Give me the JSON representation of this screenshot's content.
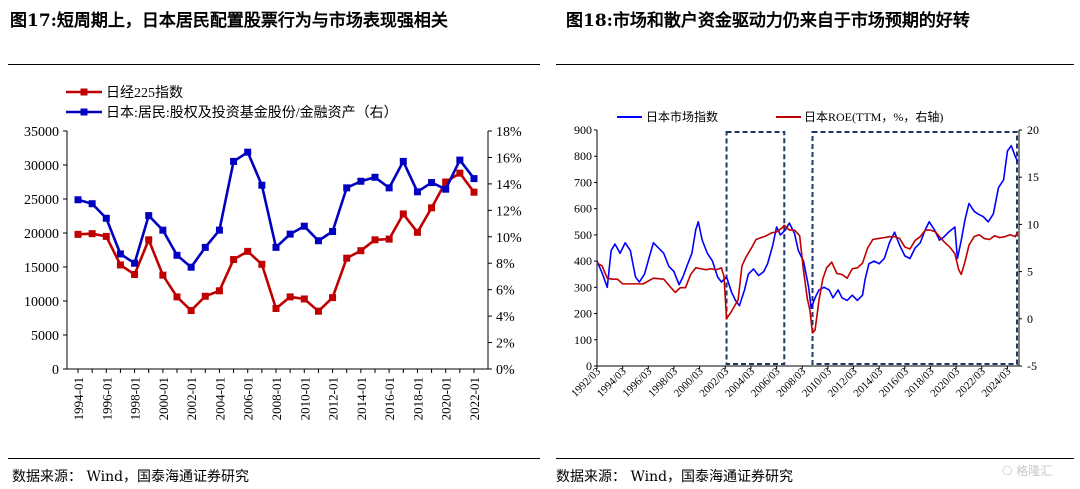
{
  "fig17": {
    "title": "图17:短周期上，日本居民配置股票行为与市场表现强相关",
    "source": "数据来源：  Wind，国泰海通证券研究"
  },
  "fig18": {
    "title": "图18:市场和散户资金驱动力仍来自于市场预期的好转",
    "source": "数据来源：  Wind，国泰海通证券研究"
  },
  "watermark": "格隆汇",
  "chart_data": [
    {
      "type": "line",
      "x": [
        "1994-01",
        "1995-01",
        "1996-01",
        "1997-01",
        "1998-01",
        "1999-01",
        "2000-01",
        "2001-01",
        "2002-01",
        "2003-01",
        "2004-01",
        "2005-01",
        "2006-01",
        "2007-01",
        "2008-01",
        "2009-01",
        "2010-01",
        "2011-01",
        "2012-01",
        "2013-01",
        "2014-01",
        "2015-01",
        "2016-01",
        "2017-01",
        "2018-01",
        "2019-01",
        "2020-01",
        "2021-01",
        "2022-01"
      ],
      "xticks": [
        "1994-01",
        "1996-01",
        "1998-01",
        "2000-01",
        "2002-01",
        "2004-01",
        "2006-01",
        "2008-01",
        "2010-01",
        "2012-01",
        "2014-01",
        "2016-01",
        "2018-01",
        "2020-01",
        "2022-01"
      ],
      "series": [
        {
          "name": "日经225指数",
          "axis": "left",
          "color": "#c00000",
          "values": [
            19800,
            19900,
            19500,
            15300,
            13900,
            19000,
            13800,
            10600,
            8600,
            10700,
            11500,
            16100,
            17300,
            15400,
            8900,
            10600,
            10300,
            8500,
            10500,
            16300,
            17400,
            19000,
            19100,
            22800,
            20100,
            23700,
            27500,
            28800,
            26000
          ]
        },
        {
          "name": "日本:居民:股权及投资基金股份/金融资产（右）",
          "axis": "right",
          "color": "#0000c0",
          "values": [
            12.8,
            12.5,
            11.4,
            8.7,
            8.0,
            11.6,
            10.5,
            8.6,
            7.7,
            9.2,
            10.5,
            15.7,
            16.4,
            13.9,
            9.2,
            10.2,
            10.8,
            9.7,
            10.4,
            13.7,
            14.2,
            14.5,
            13.7,
            15.7,
            13.4,
            14.1,
            13.6,
            15.8,
            14.4
          ]
        }
      ],
      "ylim_left": [
        0,
        35000
      ],
      "yticks_left": [
        0,
        5000,
        10000,
        15000,
        20000,
        25000,
        30000,
        35000
      ],
      "ylim_right": [
        0,
        18
      ],
      "yticks_right": [
        "0%",
        "2%",
        "4%",
        "6%",
        "8%",
        "10%",
        "12%",
        "14%",
        "16%",
        "18%"
      ],
      "legend": "top-left",
      "grid": false
    },
    {
      "type": "line",
      "xticks": [
        "1992/03",
        "1994/03",
        "1996/03",
        "1998/03",
        "2000/03",
        "2002/03",
        "2004/03",
        "2006/03",
        "2008/03",
        "2010/03",
        "2012/03",
        "2014/03",
        "2016/03",
        "2018/03",
        "2020/03",
        "2022/03",
        "2024/03"
      ],
      "series": [
        {
          "name": "日本市场指数",
          "axis": "left",
          "color": "#0000ff",
          "points": [
            [
              1992.2,
              400
            ],
            [
              1992.6,
              355
            ],
            [
              1993.0,
              300
            ],
            [
              1993.3,
              440
            ],
            [
              1993.6,
              465
            ],
            [
              1994.0,
              430
            ],
            [
              1994.4,
              470
            ],
            [
              1994.8,
              440
            ],
            [
              1995.2,
              340
            ],
            [
              1995.5,
              320
            ],
            [
              1995.9,
              350
            ],
            [
              1996.3,
              420
            ],
            [
              1996.6,
              470
            ],
            [
              1997.0,
              450
            ],
            [
              1997.4,
              430
            ],
            [
              1997.8,
              380
            ],
            [
              1998.2,
              360
            ],
            [
              1998.6,
              310
            ],
            [
              1998.9,
              340
            ],
            [
              1999.2,
              380
            ],
            [
              1999.6,
              430
            ],
            [
              1999.9,
              520
            ],
            [
              2000.1,
              550
            ],
            [
              2000.4,
              480
            ],
            [
              2000.8,
              430
            ],
            [
              2001.2,
              400
            ],
            [
              2001.6,
              340
            ],
            [
              2001.9,
              320
            ],
            [
              2002.3,
              340
            ],
            [
              2002.7,
              280
            ],
            [
              2003.0,
              250
            ],
            [
              2003.3,
              230
            ],
            [
              2003.7,
              290
            ],
            [
              2004.0,
              350
            ],
            [
              2004.4,
              370
            ],
            [
              2004.8,
              345
            ],
            [
              2005.2,
              360
            ],
            [
              2005.5,
              390
            ],
            [
              2005.9,
              460
            ],
            [
              2006.2,
              530
            ],
            [
              2006.5,
              500
            ],
            [
              2006.9,
              520
            ],
            [
              2007.2,
              545
            ],
            [
              2007.6,
              505
            ],
            [
              2007.9,
              440
            ],
            [
              2008.3,
              400
            ],
            [
              2008.7,
              300
            ],
            [
              2008.9,
              220
            ],
            [
              2009.2,
              260
            ],
            [
              2009.5,
              290
            ],
            [
              2009.9,
              300
            ],
            [
              2010.3,
              290
            ],
            [
              2010.6,
              260
            ],
            [
              2011.0,
              290
            ],
            [
              2011.3,
              260
            ],
            [
              2011.7,
              250
            ],
            [
              2012.1,
              270
            ],
            [
              2012.5,
              250
            ],
            [
              2012.9,
              270
            ],
            [
              2013.1,
              330
            ],
            [
              2013.4,
              390
            ],
            [
              2013.8,
              400
            ],
            [
              2014.2,
              390
            ],
            [
              2014.6,
              410
            ],
            [
              2015.0,
              470
            ],
            [
              2015.4,
              510
            ],
            [
              2015.8,
              460
            ],
            [
              2016.2,
              420
            ],
            [
              2016.6,
              410
            ],
            [
              2017.0,
              450
            ],
            [
              2017.4,
              470
            ],
            [
              2017.8,
              520
            ],
            [
              2018.1,
              550
            ],
            [
              2018.5,
              520
            ],
            [
              2018.9,
              480
            ],
            [
              2019.2,
              490
            ],
            [
              2019.6,
              510
            ],
            [
              2020.1,
              530
            ],
            [
              2020.3,
              410
            ],
            [
              2020.6,
              480
            ],
            [
              2020.9,
              560
            ],
            [
              2021.2,
              620
            ],
            [
              2021.6,
              590
            ],
            [
              2021.9,
              580
            ],
            [
              2022.3,
              570
            ],
            [
              2022.7,
              550
            ],
            [
              2023.1,
              580
            ],
            [
              2023.5,
              680
            ],
            [
              2023.9,
              710
            ],
            [
              2024.2,
              820
            ],
            [
              2024.5,
              840
            ],
            [
              2024.8,
              800
            ],
            [
              2025.0,
              780
            ]
          ]
        },
        {
          "name": "日本ROE(TTM，%，右轴)",
          "axis": "right",
          "color": "#c00000",
          "points": [
            [
              1992.2,
              5.9
            ],
            [
              1992.6,
              5.6
            ],
            [
              1993.0,
              4.3
            ],
            [
              1993.4,
              4.2
            ],
            [
              1993.8,
              4.2
            ],
            [
              1994.2,
              3.7
            ],
            [
              1995.0,
              3.7
            ],
            [
              1995.8,
              3.7
            ],
            [
              1996.6,
              4.3
            ],
            [
              1997.4,
              4.2
            ],
            [
              1997.9,
              3.4
            ],
            [
              1998.3,
              2.8
            ],
            [
              1998.7,
              3.3
            ],
            [
              1999.1,
              3.3
            ],
            [
              1999.5,
              4.7
            ],
            [
              1999.9,
              5.4
            ],
            [
              2000.3,
              5.3
            ],
            [
              2000.7,
              5.2
            ],
            [
              2001.1,
              5.3
            ],
            [
              2001.5,
              5.2
            ],
            [
              2001.9,
              5.4
            ],
            [
              2002.1,
              4.5
            ],
            [
              2002.3,
              0.0
            ],
            [
              2002.6,
              0.6
            ],
            [
              2002.9,
              1.3
            ],
            [
              2003.2,
              2.0
            ],
            [
              2003.5,
              5.6
            ],
            [
              2003.8,
              6.5
            ],
            [
              2004.2,
              7.4
            ],
            [
              2004.6,
              8.4
            ],
            [
              2005.0,
              8.6
            ],
            [
              2005.4,
              8.8
            ],
            [
              2005.8,
              9.1
            ],
            [
              2006.2,
              9.2
            ],
            [
              2006.6,
              9.6
            ],
            [
              2006.8,
              9.9
            ],
            [
              2007.2,
              9.4
            ],
            [
              2007.6,
              9.4
            ],
            [
              2008.0,
              8.8
            ],
            [
              2008.3,
              5.1
            ],
            [
              2008.6,
              2.1
            ],
            [
              2008.8,
              0.9
            ],
            [
              2009.0,
              -1.5
            ],
            [
              2009.2,
              -1.2
            ],
            [
              2009.5,
              1.9
            ],
            [
              2009.8,
              4.2
            ],
            [
              2010.1,
              5.4
            ],
            [
              2010.5,
              6.0
            ],
            [
              2010.9,
              4.8
            ],
            [
              2011.3,
              4.7
            ],
            [
              2011.7,
              4.3
            ],
            [
              2012.1,
              5.3
            ],
            [
              2012.5,
              5.4
            ],
            [
              2012.9,
              5.9
            ],
            [
              2013.3,
              7.5
            ],
            [
              2013.7,
              8.4
            ],
            [
              2014.1,
              8.5
            ],
            [
              2014.6,
              8.6
            ],
            [
              2015.0,
              8.7
            ],
            [
              2015.4,
              8.7
            ],
            [
              2015.8,
              8.5
            ],
            [
              2016.2,
              7.6
            ],
            [
              2016.6,
              7.4
            ],
            [
              2017.0,
              8.3
            ],
            [
              2017.4,
              8.7
            ],
            [
              2017.8,
              9.4
            ],
            [
              2018.2,
              9.4
            ],
            [
              2018.6,
              9.2
            ],
            [
              2018.9,
              8.7
            ],
            [
              2019.3,
              8.1
            ],
            [
              2019.7,
              7.6
            ],
            [
              2020.1,
              6.9
            ],
            [
              2020.4,
              5.2
            ],
            [
              2020.6,
              4.7
            ],
            [
              2020.9,
              6.1
            ],
            [
              2021.2,
              7.8
            ],
            [
              2021.6,
              8.7
            ],
            [
              2022.0,
              8.9
            ],
            [
              2022.4,
              8.5
            ],
            [
              2022.8,
              8.4
            ],
            [
              2023.2,
              8.8
            ],
            [
              2023.6,
              8.6
            ],
            [
              2024.0,
              8.7
            ],
            [
              2024.4,
              8.9
            ],
            [
              2024.8,
              8.7
            ],
            [
              2025.0,
              9.2
            ]
          ]
        }
      ],
      "xlim": [
        1992.2,
        2025.1
      ],
      "ylim_left": [
        0,
        900
      ],
      "yticks_left": [
        0,
        100,
        200,
        300,
        400,
        500,
        600,
        700,
        800,
        900
      ],
      "ylim_right": [
        -5,
        20
      ],
      "yticks_right": [
        -5,
        0,
        5,
        10,
        15,
        20
      ],
      "shaded_periods": [
        [
          2002.3,
          2006.8
        ],
        [
          2009.0,
          2025.1
        ]
      ],
      "legend": "top",
      "grid": false
    }
  ]
}
